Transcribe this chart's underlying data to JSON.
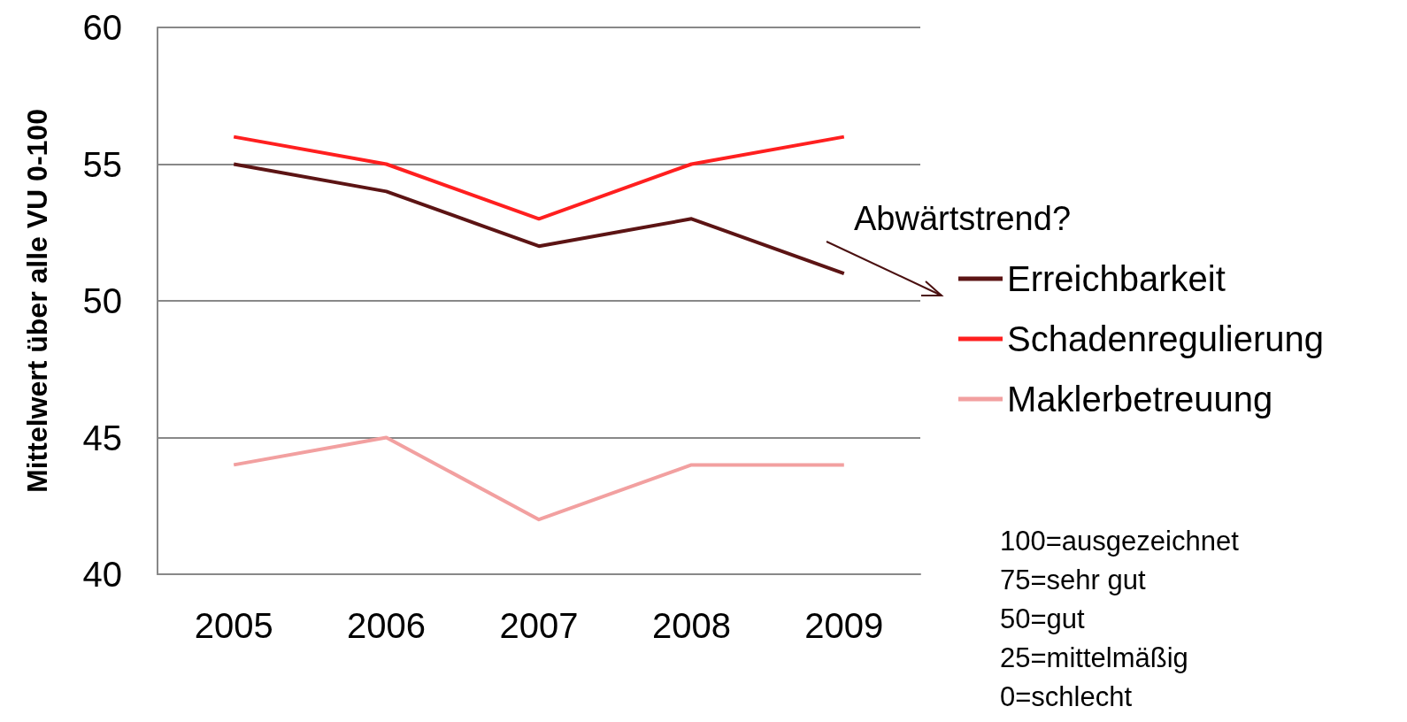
{
  "chart_data": {
    "type": "line",
    "ylabel": "Mittelwert über alle VU 0-100",
    "categories": [
      "2005",
      "2006",
      "2007",
      "2008",
      "2009"
    ],
    "series": [
      {
        "name": "Erreichbarkeit",
        "color": "#5c1414",
        "values": [
          55,
          54,
          52,
          53,
          51
        ]
      },
      {
        "name": "Schadenregulierung",
        "color": "#ff1f1f",
        "values": [
          56,
          55,
          53,
          55,
          56
        ]
      },
      {
        "name": "Maklerbetreuung",
        "color": "#f2a0a0",
        "values": [
          44,
          45,
          42,
          44,
          44
        ]
      }
    ],
    "ylim": [
      40,
      60
    ],
    "yticks": [
      40,
      45,
      50,
      55,
      60
    ],
    "grid": "y",
    "legend": "right",
    "marker": "none",
    "line_style": "solid",
    "annotations": [
      "Abwärtstrend?",
      "100=ausgezeichnet",
      "75=sehr gut",
      "50=gut",
      "25=mittelmäßig",
      "0=schlecht"
    ]
  }
}
